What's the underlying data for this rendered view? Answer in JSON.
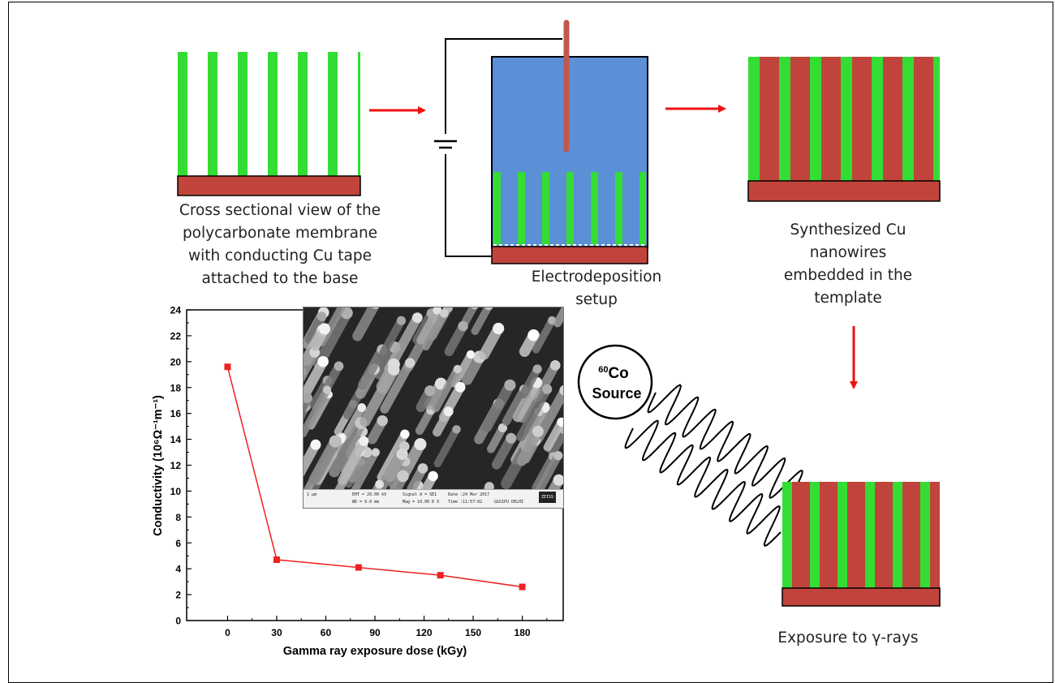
{
  "captions": {
    "membrane": "Cross sectional view of the\npolycarbonate membrane\nwith conducting Cu tape\nattached to the base",
    "setup": "Electrodeposition\nsetup",
    "synthesized": "Synthesized Cu\nnanowires\nembedded in the\ntemplate",
    "exposure": "Exposure to γ-rays"
  },
  "source": {
    "isotope": "60",
    "element": "Co",
    "label": "Source"
  },
  "sem_info": {
    "scale": "1 μm",
    "eht": "EHT = 20.00 kV",
    "wd": "WD = 9.0 mm",
    "signal": "Signal A = SE1",
    "mag": "Mag = 10.00 K X",
    "date": "Date :24 Mar 2017",
    "time": "Time :11:57:02",
    "lab": "GGSIPU DELHI",
    "logo": "ZEISS"
  },
  "colors": {
    "green": "#33dd33",
    "red": "#c0443b",
    "blue": "#5b8fd6",
    "arrow": "#ee1111",
    "plot": "#ee2222"
  },
  "chart_data": {
    "type": "line",
    "xlabel": "Gamma ray exposure dose (kGy)",
    "ylabel": "Conductivity (10⁶Ω⁻¹m⁻¹)",
    "x": [
      0,
      30,
      80,
      130,
      180
    ],
    "y": [
      19.6,
      4.7,
      4.1,
      3.5,
      2.6
    ],
    "xlim": [
      -25,
      205
    ],
    "ylim": [
      0,
      24
    ],
    "xticks": [
      0,
      30,
      60,
      90,
      120,
      150,
      180
    ],
    "yticks": [
      0,
      2,
      4,
      6,
      8,
      10,
      12,
      14,
      16,
      18,
      20,
      22,
      24
    ],
    "marker": "square",
    "grid": false
  }
}
